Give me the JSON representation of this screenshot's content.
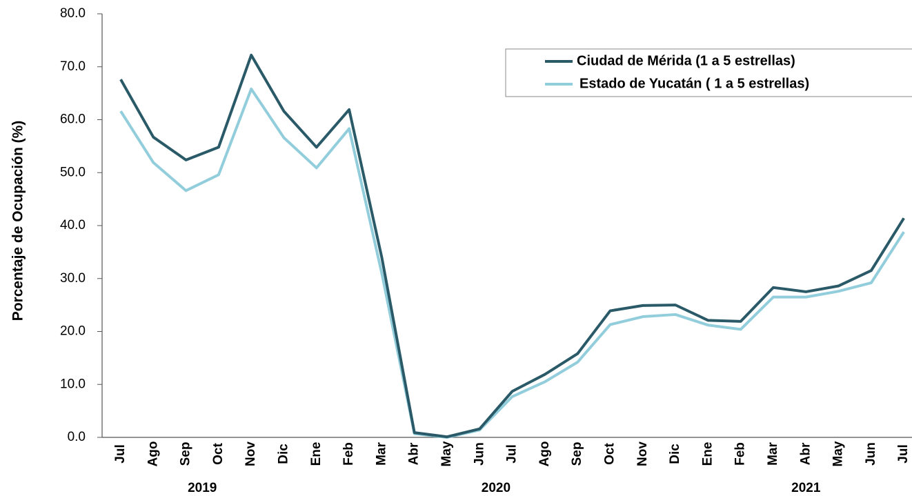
{
  "chart_data": {
    "type": "line",
    "y_label": "Porcentaje de Ocupación (%)",
    "categories": [
      "Jul",
      "Ago",
      "Sep",
      "Oct",
      "Nov",
      "Dic",
      "Ene",
      "Feb",
      "Mar",
      "Abr",
      "May",
      "Jun",
      "Jul",
      "Ago",
      "Sep",
      "Oct",
      "Nov",
      "Dic",
      "Ene",
      "Feb",
      "Mar",
      "Abr",
      "May",
      "Jun",
      "Jul"
    ],
    "year_groups": [
      {
        "label": "2019",
        "count": 6
      },
      {
        "label": "2020",
        "count": 12
      },
      {
        "label": "2021",
        "count": 7
      }
    ],
    "series": [
      {
        "name": "Ciudad de Mérida (1 a 5 estrellas)",
        "color": "#2a5a68",
        "values": [
          67.6,
          56.7,
          52.4,
          54.8,
          72.2,
          61.6,
          54.8,
          61.9,
          34.0,
          0.9,
          0.1,
          1.6,
          8.7,
          11.9,
          15.8,
          23.9,
          24.9,
          25.0,
          22.1,
          21.9,
          28.3,
          27.5,
          28.6,
          31.5,
          41.4
        ]
      },
      {
        "name": "Estado de Yucatán ( 1 a 5 estrellas)",
        "color": "#92cddc",
        "values": [
          61.6,
          51.9,
          46.6,
          49.6,
          65.8,
          56.6,
          50.9,
          58.3,
          31.0,
          0.7,
          0.0,
          1.4,
          7.7,
          10.5,
          14.2,
          21.3,
          22.8,
          23.2,
          21.2,
          20.4,
          26.5,
          26.5,
          27.6,
          29.2,
          38.8
        ]
      }
    ],
    "ylim": [
      0,
      80
    ],
    "yticks": [
      {
        "value": 0,
        "label": "0.0"
      },
      {
        "value": 10,
        "label": "10.0"
      },
      {
        "value": 20,
        "label": "20.0"
      },
      {
        "value": 30,
        "label": "30.0"
      },
      {
        "value": 40,
        "label": "40.0"
      },
      {
        "value": 50,
        "label": "50.0"
      },
      {
        "value": 60,
        "label": "60.0"
      },
      {
        "value": 70,
        "label": "70.0"
      },
      {
        "value": 80,
        "label": "80.0"
      }
    ],
    "grid": false,
    "legend": "upper right"
  }
}
